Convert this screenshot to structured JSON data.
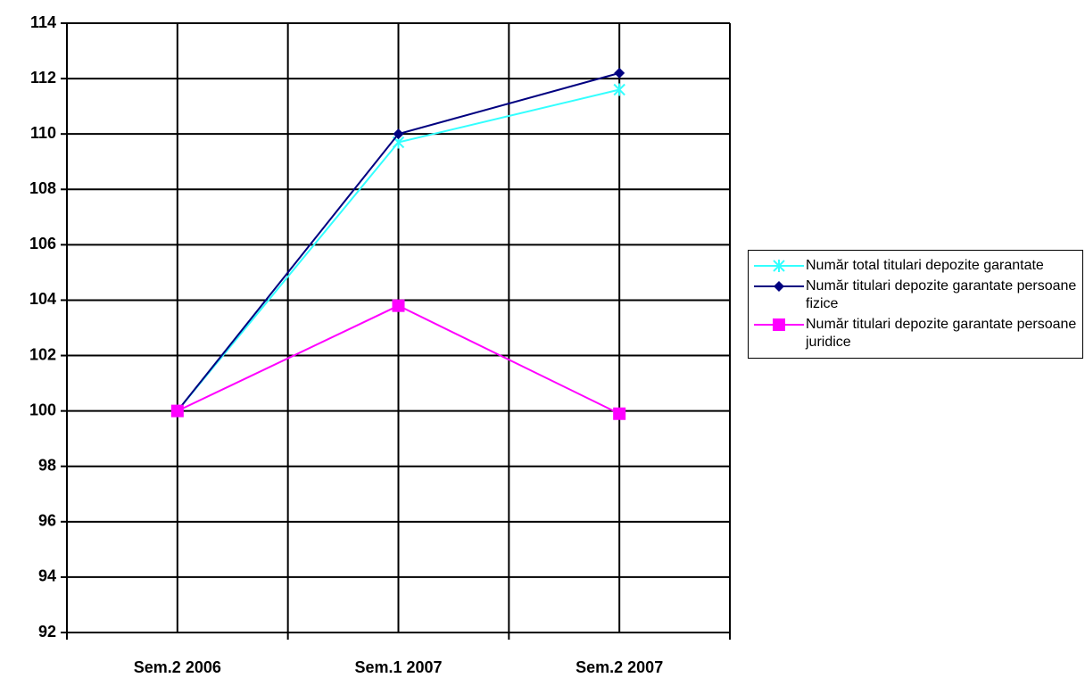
{
  "chart_data": {
    "type": "line",
    "categories": [
      "Sem.2 2006",
      "Sem.1 2007",
      "Sem.2 2007"
    ],
    "series": [
      {
        "name": "Număr total titulari depozite garantate",
        "color": "#33ffff",
        "marker": "x",
        "values": [
          100,
          109.7,
          111.6
        ]
      },
      {
        "name": "Număr titulari depozite garantate persoane fizice",
        "color": "#000080",
        "marker": "diamond",
        "values": [
          100,
          110,
          112.2
        ]
      },
      {
        "name": "Număr titulari depozite garantate persoane juridice",
        "color": "#ff00ff",
        "marker": "square",
        "values": [
          100,
          103.8,
          99.9
        ]
      }
    ],
    "ylim": [
      92,
      114
    ],
    "yticks": [
      92,
      94,
      96,
      98,
      100,
      102,
      104,
      106,
      108,
      110,
      112,
      114
    ],
    "grid": true,
    "legend": "right"
  }
}
